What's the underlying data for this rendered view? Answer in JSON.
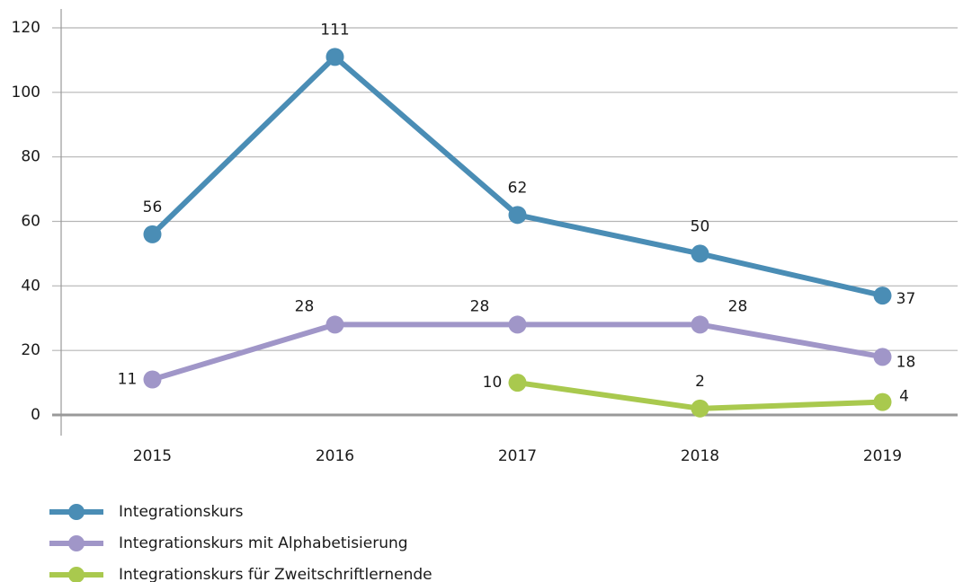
{
  "chart_data": {
    "type": "line",
    "categories": [
      "2015",
      "2016",
      "2017",
      "2018",
      "2019"
    ],
    "series": [
      {
        "name": "Integrationskurs",
        "color": "#4a8db5",
        "values": [
          56,
          111,
          62,
          50,
          37
        ]
      },
      {
        "name": "Integrationskurs mit Alphabetisierung",
        "color": "#a096c8",
        "values": [
          11,
          28,
          28,
          28,
          18
        ]
      },
      {
        "name": "Integrationskurs für Zweitschriftlernende",
        "color": "#a9c94e",
        "values": [
          null,
          null,
          10,
          2,
          4
        ]
      }
    ],
    "ylim": [
      0,
      120
    ],
    "yticks": [
      0,
      20,
      40,
      60,
      80,
      100,
      120
    ],
    "grid": true
  }
}
